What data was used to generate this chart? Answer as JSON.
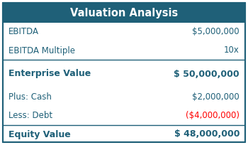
{
  "title": "Valuation Analysis",
  "title_bg": "#1f6078",
  "title_color": "#ffffff",
  "rows": [
    {
      "label": "EBITDA",
      "value": "$5,000,000",
      "bold": false,
      "value_color": "#1f6078",
      "label_color": "#1f6078",
      "separator_below": false,
      "gap_below": false
    },
    {
      "label": "EBITDA Multiple",
      "value": "10x",
      "bold": false,
      "value_color": "#1f6078",
      "label_color": "#1f6078",
      "separator_below": true,
      "gap_below": false
    },
    {
      "label": "Enterprise Value",
      "value": "$ 50,000,000",
      "bold": true,
      "value_color": "#1f6078",
      "label_color": "#1f6078",
      "separator_below": false,
      "gap_below": true
    },
    {
      "label": "Plus: Cash",
      "value": "$2,000,000",
      "bold": false,
      "value_color": "#1f6078",
      "label_color": "#1f6078",
      "separator_below": false,
      "gap_below": false
    },
    {
      "label": "Less: Debt",
      "value": "($4,000,000)",
      "bold": false,
      "value_color": "#ff0000",
      "label_color": "#1f6078",
      "separator_below": true,
      "gap_below": false
    },
    {
      "label": "Equity Value",
      "value": "$ 48,000,000",
      "bold": true,
      "value_color": "#1f6078",
      "label_color": "#1f6078",
      "separator_below": false,
      "gap_below": false
    }
  ],
  "bg_color": "#ffffff",
  "border_color": "#1f6078",
  "title_fontsize": 10.5,
  "row_fontsize": 8.5,
  "bold_fontsize": 9.0
}
